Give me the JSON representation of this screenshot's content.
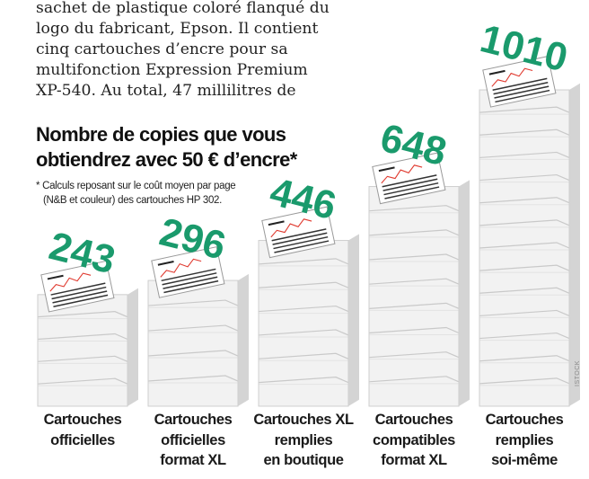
{
  "article": {
    "lines": [
      "sachet de plastique coloré flanqué du",
      "logo du fabricant, Epson. Il contient",
      "cinq cartouches d’encre pour sa",
      "multifonction Expression Premium",
      "XP-540. Au total, 47 millilitres de"
    ]
  },
  "credit": "ISTOCK",
  "colors": {
    "number": "#1a9a6c",
    "paper": "#f2f2f2",
    "paper_shadow": "#d4d4d4",
    "chart_line": "#e03a2f"
  },
  "chart_data": {
    "type": "bar",
    "title": [
      "Nombre de copies que vous",
      "obtiendrez avec 50 € d’encre*"
    ],
    "footnote": [
      "* Calculs reposant sur le coût moyen par page",
      "(N&B et couleur) des cartouches HP 302."
    ],
    "categories": [
      [
        "Cartouches",
        "officielles"
      ],
      [
        "Cartouches",
        "officielles",
        "format XL"
      ],
      [
        "Cartouches XL",
        "remplies",
        "en boutique"
      ],
      [
        "Cartouches",
        "compatibles",
        "format XL"
      ],
      [
        "Cartouches",
        "remplies",
        "soi-même"
      ]
    ],
    "values": [
      243,
      296,
      446,
      648,
      1010
    ],
    "value_labels": [
      "243",
      "296",
      "446",
      "648",
      "1010"
    ]
  }
}
